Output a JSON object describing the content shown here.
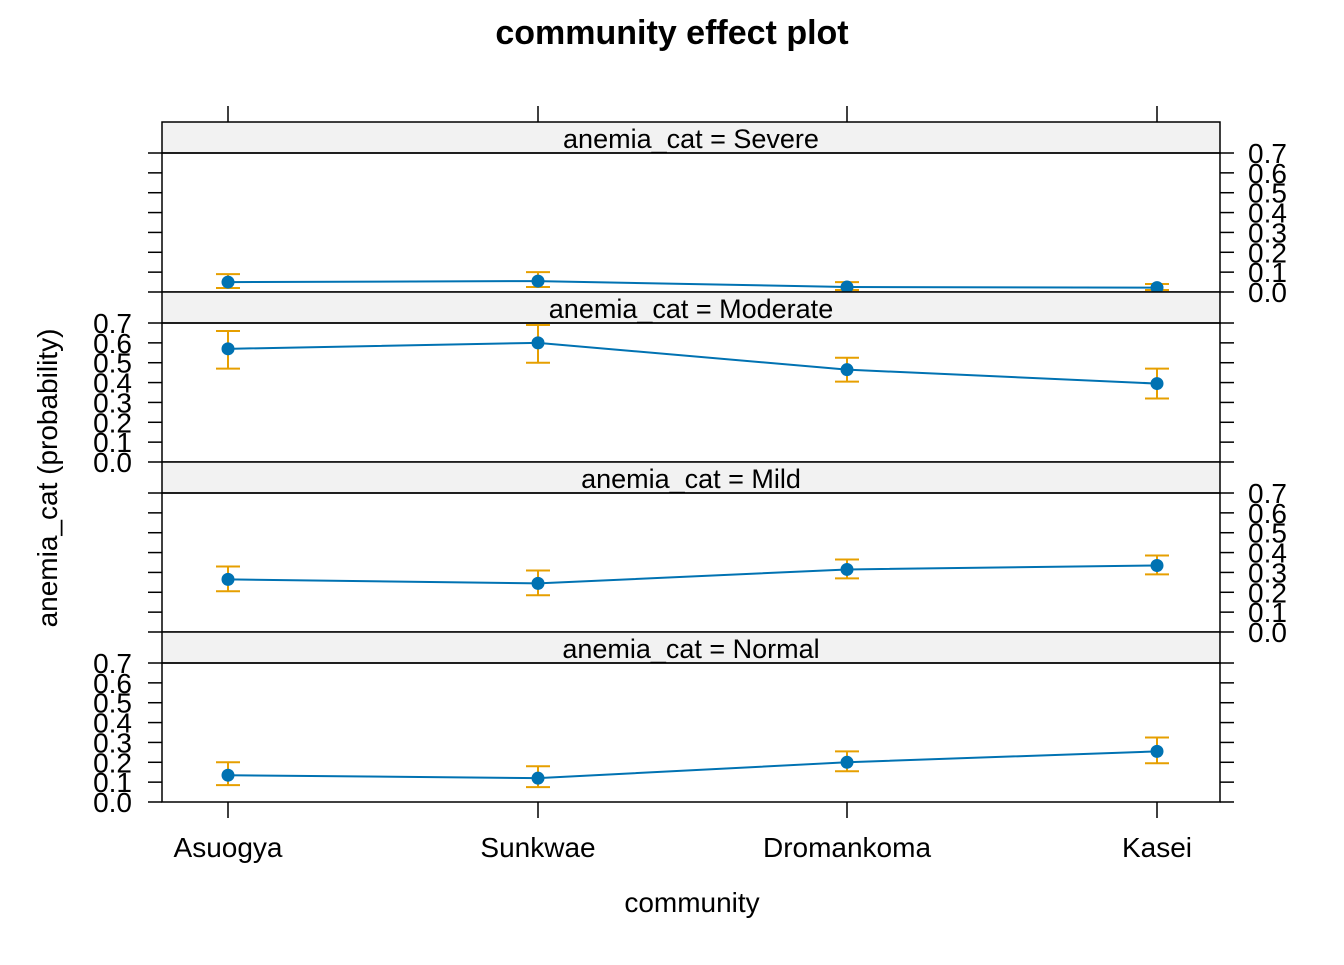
{
  "chart_data": {
    "type": "line",
    "title": "community effect plot",
    "xlabel": "community",
    "ylabel": "anemia_cat (probability)",
    "categories": [
      "Asuogya",
      "Sunkwae",
      "Dromankoma",
      "Kasei"
    ],
    "ylim": [
      0.0,
      0.7
    ],
    "yticks": [
      "0.0",
      "0.1",
      "0.2",
      "0.3",
      "0.4",
      "0.5",
      "0.6",
      "0.7"
    ],
    "grid": false,
    "colors": {
      "line": "#0072B2",
      "errorbar": "#E69F00",
      "strip_bg": "#F2F2F2"
    },
    "panels": [
      {
        "strip": "anemia_cat = Severe",
        "values": [
          0.05,
          0.055,
          0.025,
          0.022
        ],
        "lower": [
          0.02,
          0.025,
          0.01,
          0.01
        ],
        "upper": [
          0.09,
          0.1,
          0.05,
          0.04
        ]
      },
      {
        "strip": "anemia_cat = Moderate",
        "values": [
          0.57,
          0.6,
          0.465,
          0.395
        ],
        "lower": [
          0.47,
          0.5,
          0.405,
          0.32
        ],
        "upper": [
          0.66,
          0.69,
          0.525,
          0.47
        ]
      },
      {
        "strip": "anemia_cat = Mild",
        "values": [
          0.265,
          0.245,
          0.315,
          0.335
        ],
        "lower": [
          0.205,
          0.185,
          0.27,
          0.29
        ],
        "upper": [
          0.33,
          0.31,
          0.365,
          0.385
        ]
      },
      {
        "strip": "anemia_cat = Normal",
        "values": [
          0.135,
          0.12,
          0.2,
          0.255
        ],
        "lower": [
          0.085,
          0.075,
          0.155,
          0.195
        ],
        "upper": [
          0.2,
          0.18,
          0.255,
          0.325
        ]
      }
    ]
  }
}
